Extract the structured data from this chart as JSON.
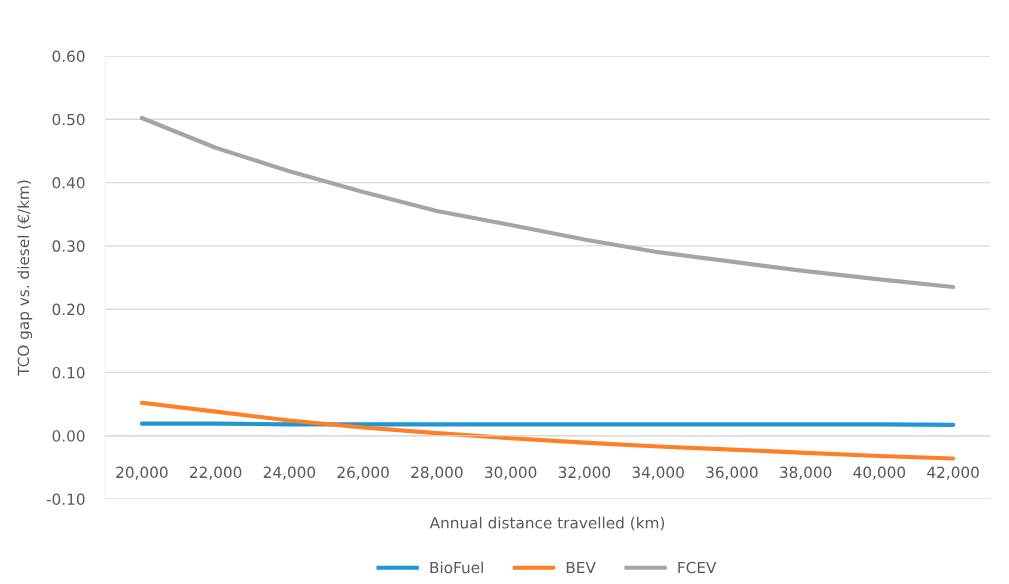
{
  "chart_data": {
    "type": "line",
    "xlabel": "Annual distance travelled (km)",
    "ylabel": "TCO gap vs. diesel (€/km)",
    "categories": [
      "20,000",
      "22,000",
      "24,000",
      "26,000",
      "28,000",
      "30,000",
      "32,000",
      "34,000",
      "36,000",
      "38,000",
      "40,000",
      "42,000"
    ],
    "series": [
      {
        "name": "BioFuel",
        "color": "#1f97d4",
        "values": [
          0.019,
          0.019,
          0.018,
          0.018,
          0.018,
          0.018,
          0.018,
          0.018,
          0.018,
          0.018,
          0.018,
          0.017
        ]
      },
      {
        "name": "BEV",
        "color": "#ff7f27",
        "values": [
          0.052,
          0.038,
          0.024,
          0.013,
          0.004,
          -0.004,
          -0.011,
          -0.017,
          -0.022,
          -0.027,
          -0.032,
          -0.036
        ]
      },
      {
        "name": "FCEV",
        "color": "#a5a5a5",
        "values": [
          0.502,
          0.455,
          0.418,
          0.385,
          0.355,
          0.333,
          0.31,
          0.29,
          0.275,
          0.26,
          0.247,
          0.235
        ]
      }
    ],
    "ylim": [
      -0.1,
      0.6
    ],
    "yticks": [
      {
        "value": -0.1,
        "label": "-0.10"
      },
      {
        "value": 0,
        "label": "0.00"
      },
      {
        "value": 0.1,
        "label": "0.10"
      },
      {
        "value": 0.2,
        "label": "0.20"
      },
      {
        "value": 0.3,
        "label": "0.30"
      },
      {
        "value": 0.4,
        "label": "0.40"
      },
      {
        "value": 0.5,
        "label": "0.50"
      },
      {
        "value": 0.6,
        "label": "0.60"
      }
    ],
    "grid": "y",
    "legend": "bottom",
    "marker": "none",
    "line_style": "solid"
  }
}
